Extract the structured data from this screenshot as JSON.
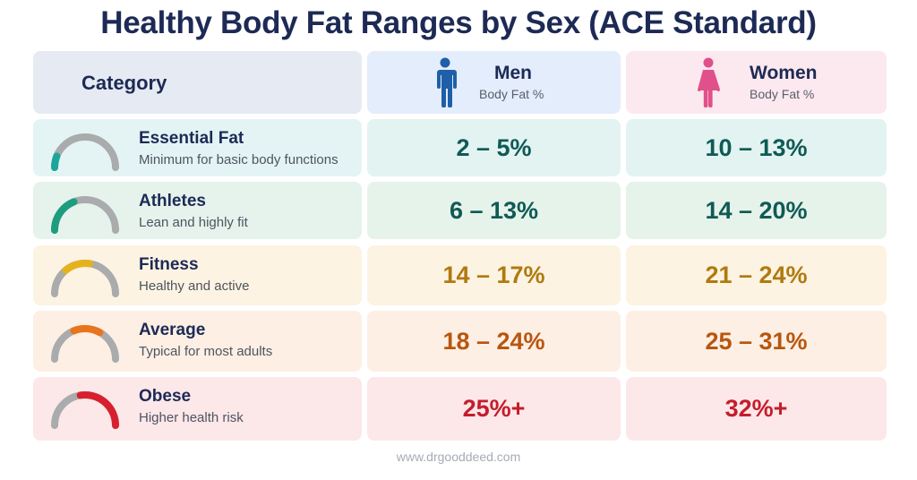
{
  "title": "Healthy Body Fat Ranges by Sex (ACE Standard)",
  "header": {
    "category_label": "Category",
    "men": {
      "label": "Men",
      "sub": "Body Fat %",
      "icon": "male-icon",
      "color": "#1f5fa8"
    },
    "women": {
      "label": "Women",
      "sub": "Body Fat %",
      "icon": "female-icon",
      "color": "#e0508a"
    }
  },
  "rows": [
    {
      "name": "Essential Fat",
      "desc": "Minimum for basic body functions",
      "men": "2 – 5%",
      "women": "10 – 13%",
      "color": "#0f5a55",
      "gauge_color": "#1ea59a",
      "gauge_start": 0.0,
      "gauge_end": 0.12
    },
    {
      "name": "Athletes",
      "desc": "Lean and highly fit",
      "men": "6 – 13%",
      "women": "14 – 20%",
      "color": "#0f5a55",
      "gauge_color": "#1e9c7f",
      "gauge_start": 0.0,
      "gauge_end": 0.38
    },
    {
      "name": "Fitness",
      "desc": "Healthy and active",
      "men": "14 – 17%",
      "women": "21 – 24%",
      "color": "#b07a10",
      "gauge_color": "#e6b21c",
      "gauge_start": 0.28,
      "gauge_end": 0.55
    },
    {
      "name": "Average",
      "desc": "Typical for most adults",
      "men": "18 – 24%",
      "women": "25 – 31%",
      "color": "#b8560f",
      "gauge_color": "#e8741c",
      "gauge_start": 0.38,
      "gauge_end": 0.66
    },
    {
      "name": "Obese",
      "desc": "Higher health risk",
      "men": "25%+",
      "women": "32%+",
      "color": "#c41d2c",
      "gauge_color": "#d6202e",
      "gauge_start": 0.45,
      "gauge_end": 1.0
    }
  ],
  "footer": "www.drgooddeed.com",
  "colors": {
    "title": "#1d2a55",
    "gauge_track": "#a9abad"
  }
}
